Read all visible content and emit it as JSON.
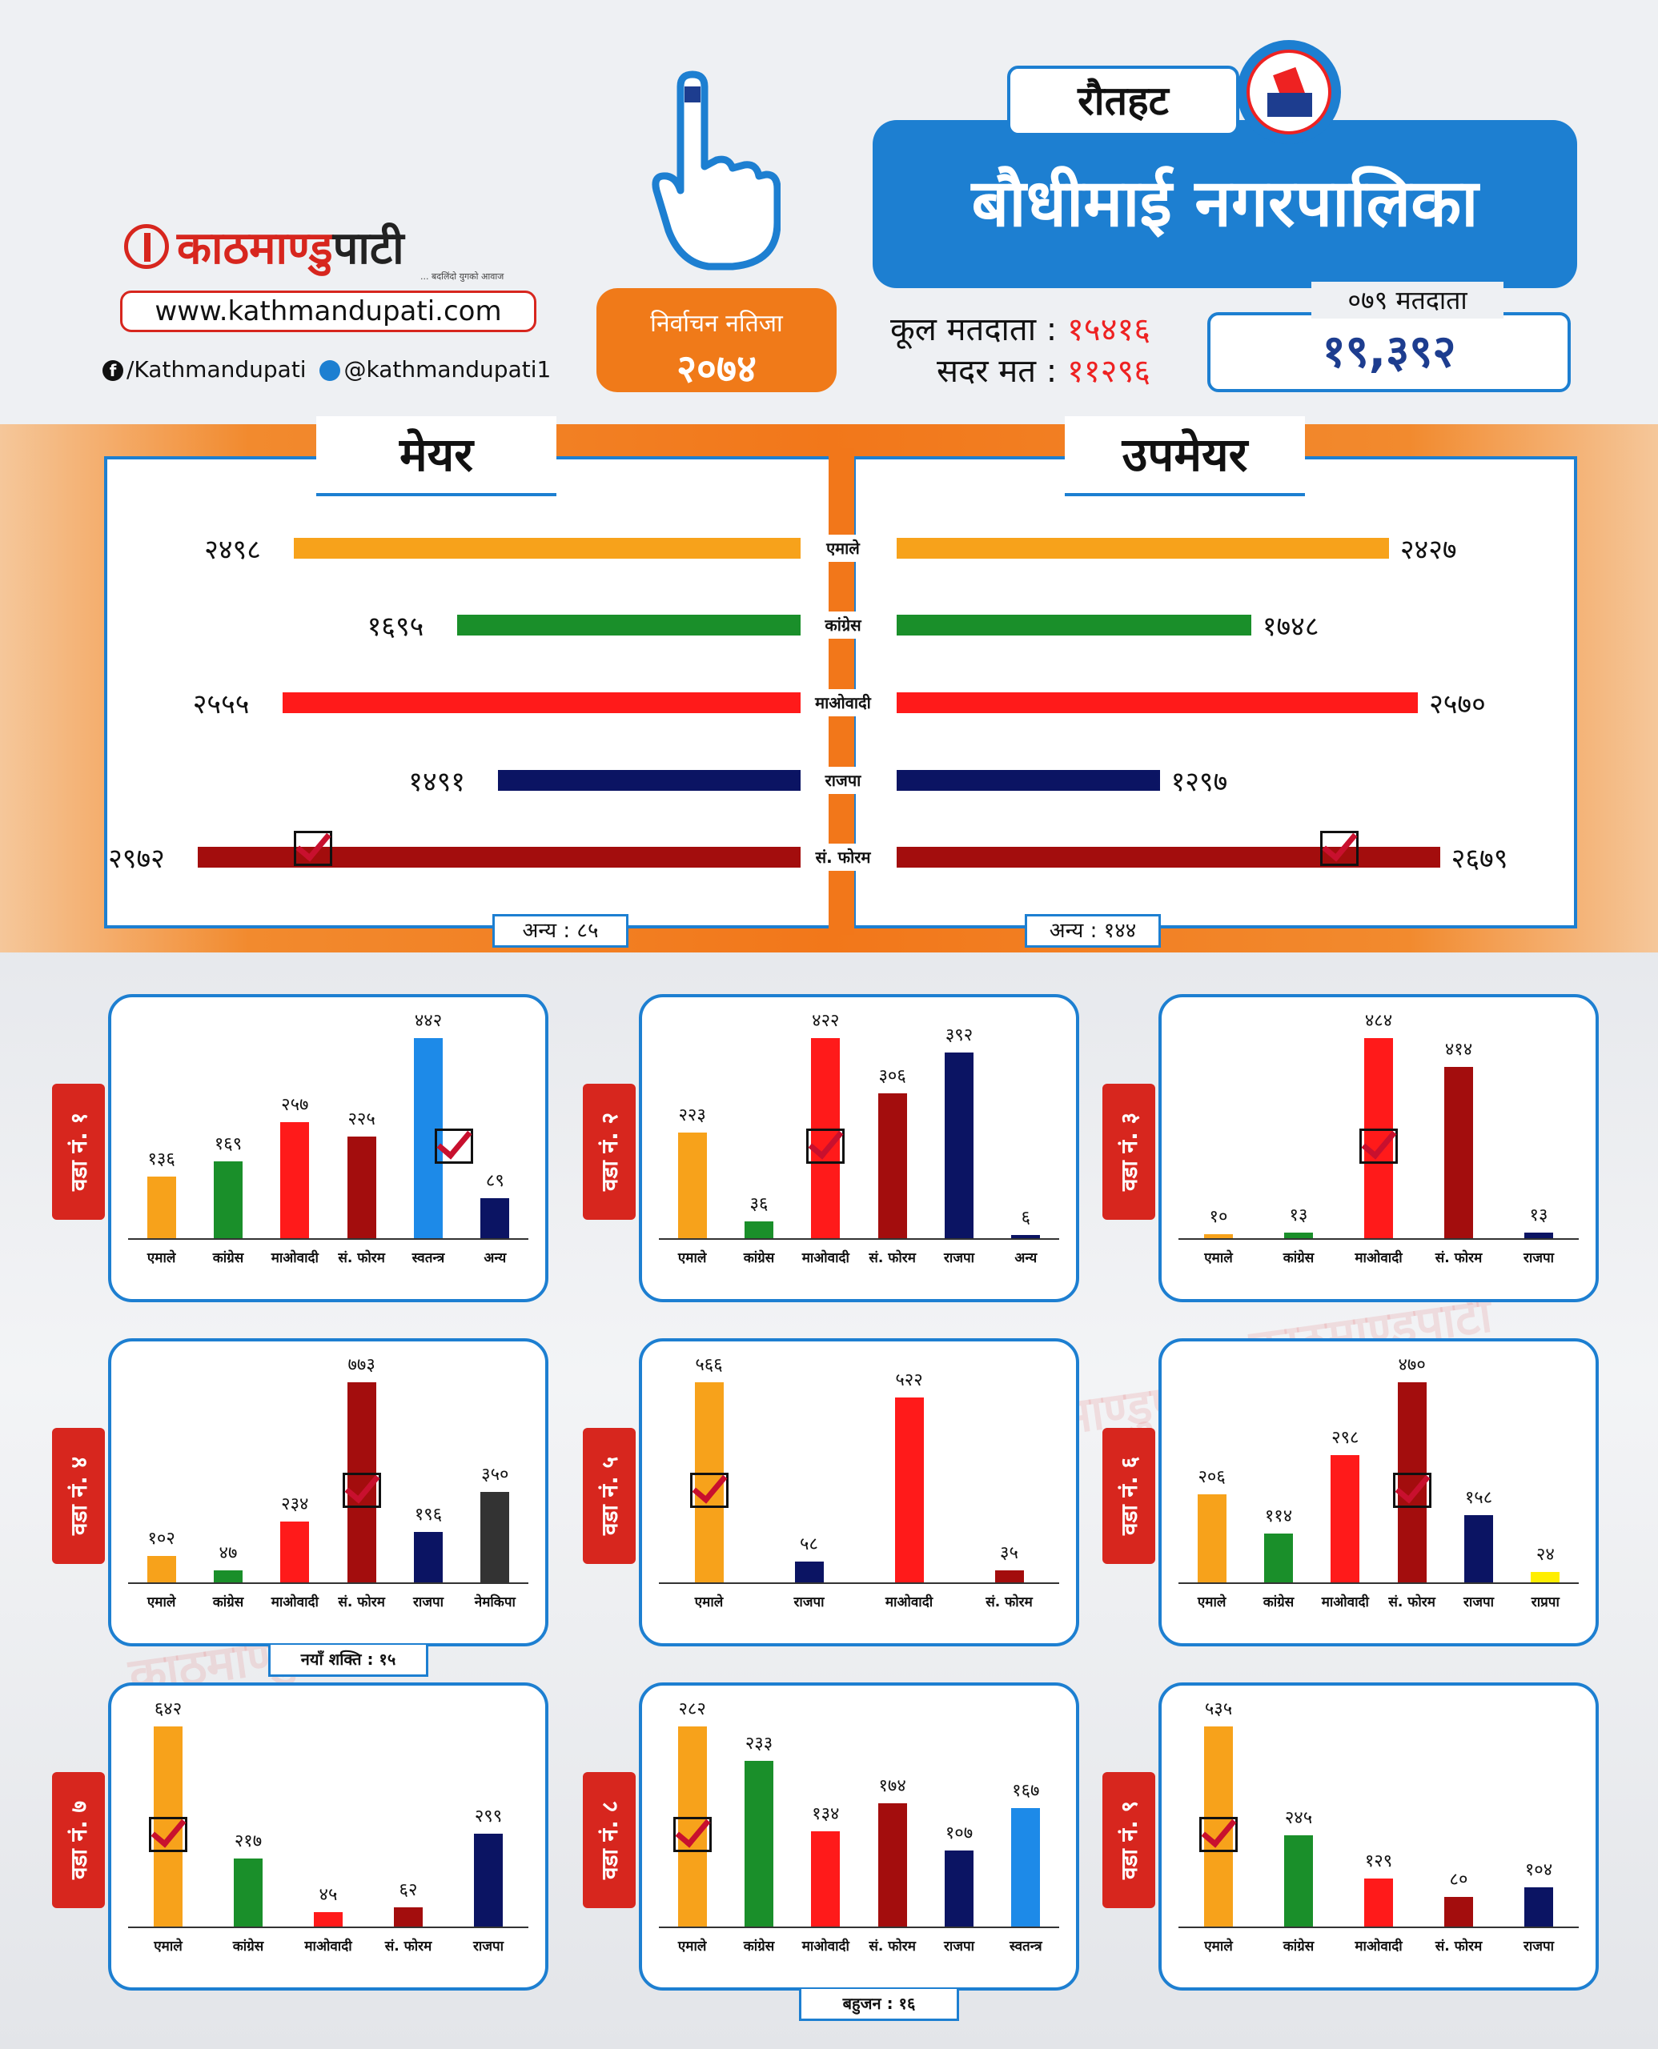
{
  "header": {
    "logo_text_red": "काठमाण्डु",
    "logo_text_dark": "पाटी",
    "logo_tagline": "... बदलिंदो युगको आवाज",
    "website": "www.kathmandupati.com",
    "facebook": "/Kathmandupati",
    "twitter": "@kathmandupati1",
    "result_line1": "निर्वाचन नतिजा",
    "result_line2": "२०७४",
    "district": "रौतहट",
    "municipality": "बौधीमाई नगरपालिका",
    "total_voters_label": "कूल मतदाता :",
    "total_voters_value": "१५४१६",
    "valid_votes_label": "सदर मत :",
    "valid_votes_value": "११२९६",
    "voters_079_label": "०७९ मतदाता",
    "voters_079_value": "१९,३९२"
  },
  "colors": {
    "emale": "#f7a21b",
    "congress": "#1a8f2a",
    "maoist": "#ff1a1a",
    "rajpa": "#0b1463",
    "forum": "#a30d0d",
    "swatantra": "#1d8ae8",
    "nemakipa": "#333333",
    "rapra": "#ffee00",
    "accent": "#1d7fd1",
    "orange": "#f2771a"
  },
  "chart_data": [
    {
      "type": "bar",
      "title": "मेयर",
      "orientation": "horizontal",
      "categories": [
        "एमाले",
        "कांग्रेस",
        "माओवादी",
        "राजपा",
        "सं. फोरम"
      ],
      "values": [
        2498,
        1695,
        2555,
        1491,
        2972
      ],
      "labels": [
        "२४९८",
        "१६९५",
        "२५५५",
        "१४९१",
        "२९७२"
      ],
      "colors": [
        "emale",
        "congress",
        "maoist",
        "rajpa",
        "forum"
      ],
      "winner": "सं. फोरम",
      "other": "अन्य : ८५"
    },
    {
      "type": "bar",
      "title": "उपमेयर",
      "orientation": "horizontal",
      "categories": [
        "एमाले",
        "कांग्रेस",
        "माओवादी",
        "राजपा",
        "सं. फोरम"
      ],
      "values": [
        2427,
        1748,
        2570,
        1297,
        2679
      ],
      "labels": [
        "२४२७",
        "१७४८",
        "२५७०",
        "१२९७",
        "२६७९"
      ],
      "colors": [
        "emale",
        "congress",
        "maoist",
        "rajpa",
        "forum"
      ],
      "winner": "सं. फोरम",
      "other": "अन्य : १४४"
    },
    {
      "type": "bar",
      "ward": "वडा नं. १",
      "categories": [
        "एमाले",
        "कांग्रेस",
        "माओवादी",
        "सं. फोरम",
        "स्वतन्त्र",
        "अन्य"
      ],
      "values": [
        136,
        169,
        257,
        225,
        442,
        89
      ],
      "labels": [
        "१३६",
        "१६९",
        "२५७",
        "२२५",
        "४४२",
        "८९"
      ],
      "colors": [
        "emale",
        "congress",
        "maoist",
        "forum",
        "swatantra",
        "rajpa"
      ],
      "winner": 4,
      "note": ""
    },
    {
      "type": "bar",
      "ward": "वडा नं. २",
      "categories": [
        "एमाले",
        "कांग्रेस",
        "माओवादी",
        "सं. फोरम",
        "राजपा",
        "अन्य"
      ],
      "values": [
        223,
        36,
        422,
        306,
        392,
        6
      ],
      "labels": [
        "२२३",
        "३६",
        "४२२",
        "३०६",
        "३९२",
        "६"
      ],
      "colors": [
        "emale",
        "congress",
        "maoist",
        "forum",
        "rajpa",
        "rajpa"
      ],
      "winner": 2,
      "note": ""
    },
    {
      "type": "bar",
      "ward": "वडा नं. ३",
      "categories": [
        "एमाले",
        "कांग्रेस",
        "माओवादी",
        "सं. फोरम",
        "राजपा"
      ],
      "values": [
        10,
        13,
        484,
        414,
        13
      ],
      "labels": [
        "१०",
        "१३",
        "४८४",
        "४१४",
        "१३"
      ],
      "colors": [
        "emale",
        "congress",
        "maoist",
        "forum",
        "rajpa"
      ],
      "winner": 2,
      "note": ""
    },
    {
      "type": "bar",
      "ward": "वडा नं. ४",
      "categories": [
        "एमाले",
        "कांग्रेस",
        "माओवादी",
        "सं. फोरम",
        "राजपा",
        "नेमकिपा"
      ],
      "values": [
        102,
        47,
        234,
        773,
        196,
        350
      ],
      "labels": [
        "१०२",
        "४७",
        "२३४",
        "७७३",
        "१९६",
        "३५०"
      ],
      "colors": [
        "emale",
        "congress",
        "maoist",
        "forum",
        "rajpa",
        "nemakipa"
      ],
      "winner": 3,
      "note": "नयाँ शक्ति : १५"
    },
    {
      "type": "bar",
      "ward": "वडा नं. ५",
      "categories": [
        "एमाले",
        "राजपा",
        "माओवादी",
        "सं. फोरम"
      ],
      "values": [
        566,
        58,
        522,
        35
      ],
      "labels": [
        "५६६",
        "५८",
        "५२२",
        "३५"
      ],
      "colors": [
        "emale",
        "rajpa",
        "maoist",
        "forum"
      ],
      "winner": 0,
      "note": ""
    },
    {
      "type": "bar",
      "ward": "वडा नं. ६",
      "categories": [
        "एमाले",
        "कांग्रेस",
        "माओवादी",
        "सं. फोरम",
        "राजपा",
        "राप्रपा"
      ],
      "values": [
        206,
        114,
        298,
        470,
        158,
        24
      ],
      "labels": [
        "२०६",
        "११४",
        "२९८",
        "४७०",
        "१५८",
        "२४"
      ],
      "colors": [
        "emale",
        "congress",
        "maoist",
        "forum",
        "rajpa",
        "rapra"
      ],
      "winner": 3,
      "note": ""
    },
    {
      "type": "bar",
      "ward": "वडा नं. ७",
      "categories": [
        "एमाले",
        "कांग्रेस",
        "माओवादी",
        "सं. फोरम",
        "राजपा"
      ],
      "values": [
        642,
        217,
        45,
        62,
        299
      ],
      "labels": [
        "६४२",
        "२१७",
        "४५",
        "६२",
        "२९९"
      ],
      "colors": [
        "emale",
        "congress",
        "maoist",
        "forum",
        "rajpa"
      ],
      "winner": 0,
      "note": ""
    },
    {
      "type": "bar",
      "ward": "वडा नं. ८",
      "categories": [
        "एमाले",
        "कांग्रेस",
        "माओवादी",
        "सं. फोरम",
        "राजपा",
        "स्वतन्त्र"
      ],
      "values": [
        282,
        233,
        134,
        174,
        107,
        167
      ],
      "labels": [
        "२८२",
        "२३३",
        "१३४",
        "१७४",
        "१०७",
        "१६७"
      ],
      "colors": [
        "emale",
        "congress",
        "maoist",
        "forum",
        "rajpa",
        "swatantra"
      ],
      "winner": 0,
      "note": "बहुजन : १६"
    },
    {
      "type": "bar",
      "ward": "वडा नं. ९",
      "categories": [
        "एमाले",
        "कांग्रेस",
        "माओवादी",
        "सं. फोरम",
        "राजपा"
      ],
      "values": [
        535,
        245,
        129,
        80,
        104
      ],
      "labels": [
        "५३५",
        "२४५",
        "१२९",
        "८०",
        "१०४"
      ],
      "colors": [
        "emale",
        "congress",
        "maoist",
        "forum",
        "rajpa"
      ],
      "winner": 0,
      "note": ""
    }
  ]
}
